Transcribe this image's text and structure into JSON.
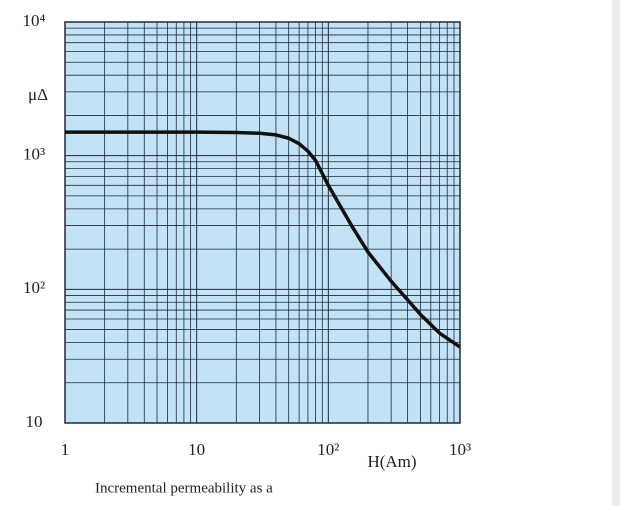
{
  "chart_data": {
    "type": "line",
    "y_label": "μΔ",
    "x_label": "H(Am)",
    "caption": "Incremental permeability as a",
    "log_x": true,
    "log_y": true,
    "grid": true,
    "minor_grid": true,
    "background": "#c2e2f6",
    "xlim": [
      1,
      1000
    ],
    "ylim": [
      10,
      10000
    ],
    "xticks": [
      1,
      10,
      {
        "value": 100,
        "label": "10²"
      },
      {
        "value": 1000,
        "label": "10³"
      }
    ],
    "yticks": [
      10,
      {
        "value": 100,
        "label": "10²"
      },
      {
        "value": 1000,
        "label": "10³"
      },
      {
        "value": 10000,
        "label": "10⁴"
      }
    ],
    "x": [
      1,
      2,
      5,
      10,
      20,
      30,
      40,
      50,
      60,
      70,
      80,
      100,
      150,
      200,
      300,
      500,
      700,
      1000
    ],
    "series": [
      {
        "color": "#111111",
        "values": [
          1500,
          1500,
          1500,
          1500,
          1490,
          1470,
          1430,
          1350,
          1230,
          1080,
          920,
          600,
          300,
          190,
          115,
          65,
          47,
          37
        ]
      }
    ]
  }
}
